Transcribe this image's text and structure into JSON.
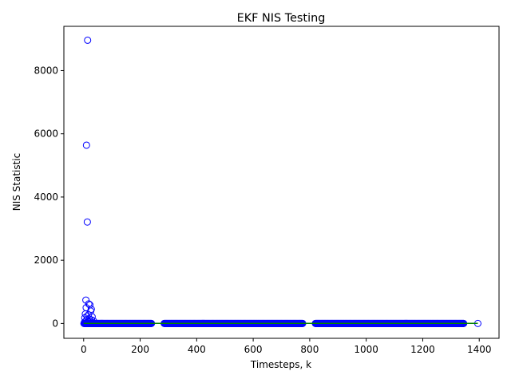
{
  "chart_data": {
    "type": "scatter",
    "title": "EKF NIS Testing",
    "xlabel": "Timesteps, k",
    "ylabel": "NIS Statistic",
    "xlim": [
      -70,
      1470
    ],
    "ylim": [
      -470,
      9400
    ],
    "xticks": [
      0,
      200,
      400,
      600,
      800,
      1000,
      1200,
      1400
    ],
    "yticks": [
      0,
      2000,
      4000,
      6000,
      8000
    ],
    "grid": false,
    "legend": "none",
    "colors": {
      "marker_edge": "#0000ff",
      "line": "#008000"
    },
    "segments": [
      [
        1,
        240
      ],
      [
        285,
        775
      ],
      [
        820,
        1345
      ]
    ],
    "last_point": [
      1395,
      0
    ],
    "outliers": [
      {
        "x": 14,
        "y": 8960
      },
      {
        "x": 10,
        "y": 5640
      },
      {
        "x": 13,
        "y": 3210
      },
      {
        "x": 8,
        "y": 740
      },
      {
        "x": 18,
        "y": 620
      },
      {
        "x": 22,
        "y": 590
      },
      {
        "x": 9,
        "y": 500
      },
      {
        "x": 27,
        "y": 450
      },
      {
        "x": 25,
        "y": 390
      },
      {
        "x": 6,
        "y": 300
      },
      {
        "x": 17,
        "y": 270
      },
      {
        "x": 12,
        "y": 230
      },
      {
        "x": 30,
        "y": 210
      },
      {
        "x": 4,
        "y": 180
      },
      {
        "x": 20,
        "y": 140
      },
      {
        "x": 28,
        "y": 110
      },
      {
        "x": 35,
        "y": 80
      },
      {
        "x": 15,
        "y": 60
      },
      {
        "x": 3,
        "y": 40
      },
      {
        "x": 11,
        "y": 120
      },
      {
        "x": 24,
        "y": 50
      }
    ],
    "threshold_line": {
      "x": [
        0,
        1395
      ],
      "y": [
        3,
        3
      ]
    }
  }
}
